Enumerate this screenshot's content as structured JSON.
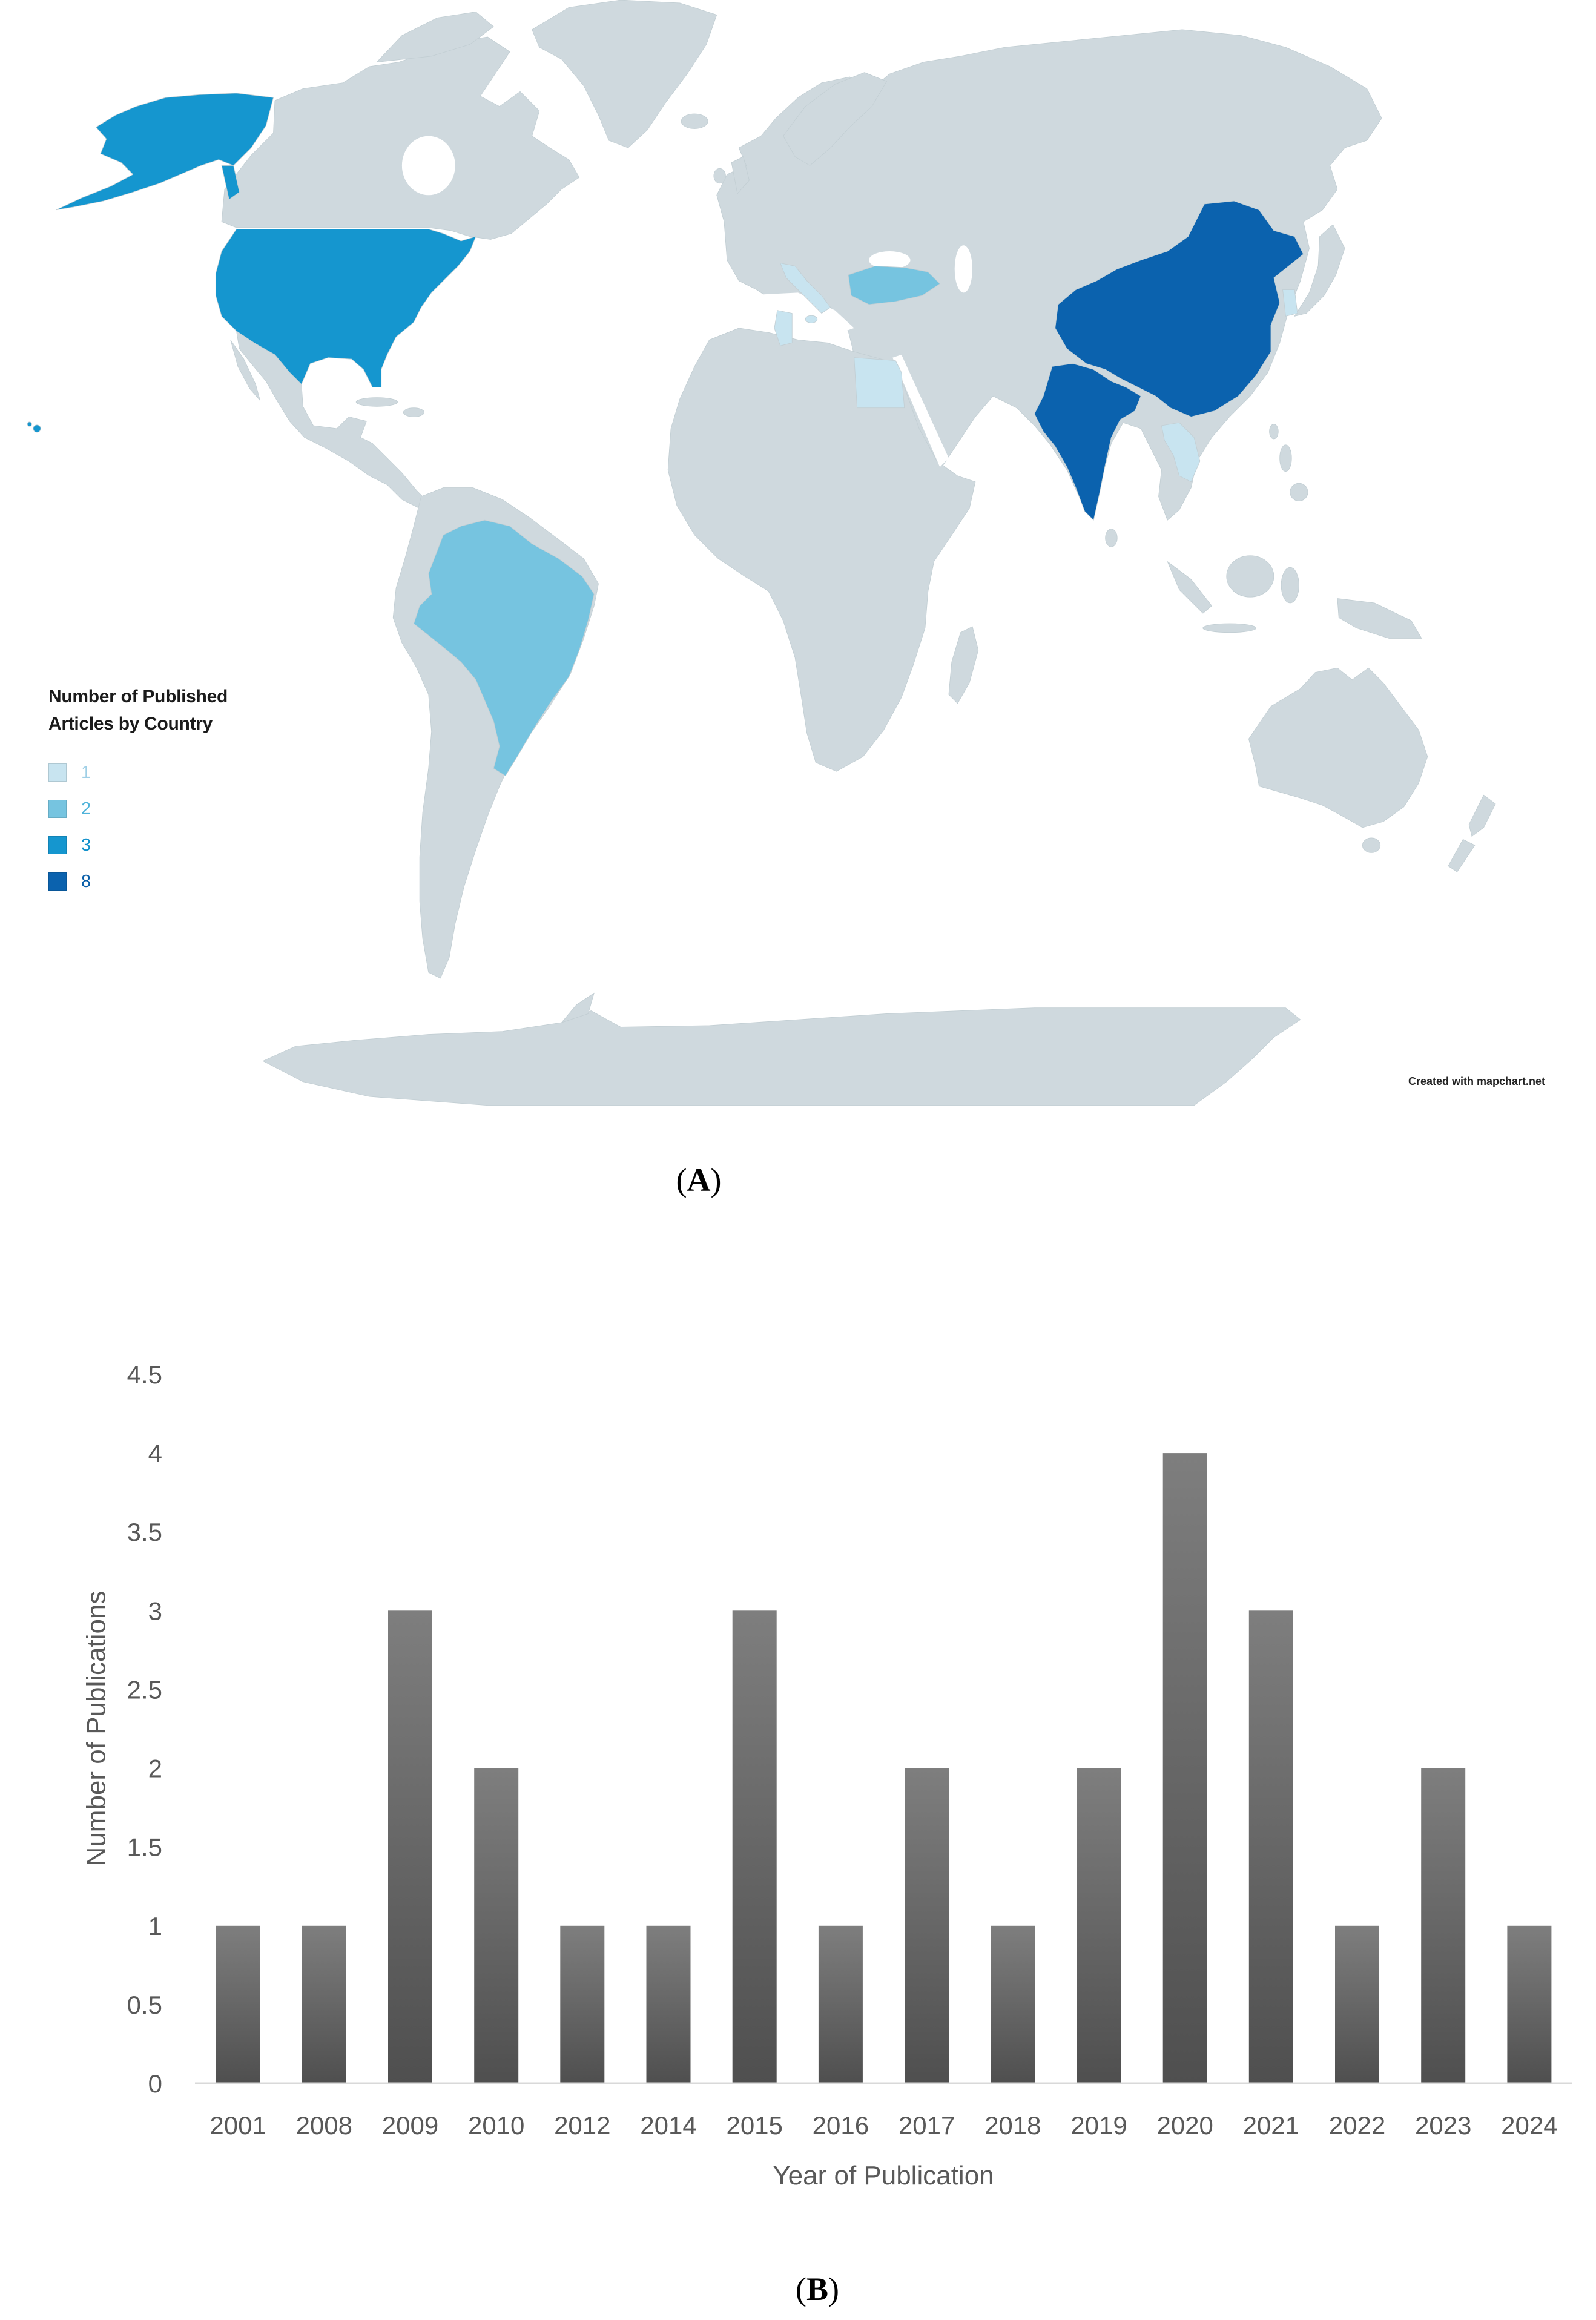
{
  "panel_a": {
    "open": "(",
    "letter": "A",
    "close": ")"
  },
  "panel_b": {
    "open": "(",
    "letter": "B",
    "close": ")"
  },
  "map": {
    "base_color": "#cfd9de",
    "legend": {
      "title_line1": "Number of Published",
      "title_line2": "Articles by Country",
      "entries": [
        {
          "label": "1",
          "color": "#c8e4f0",
          "label_color": "#9fcfe6"
        },
        {
          "label": "2",
          "color": "#76c4e0",
          "label_color": "#4fb3da"
        },
        {
          "label": "3",
          "color": "#1596cf",
          "label_color": "#1391cb"
        },
        {
          "label": "8",
          "color": "#0b62ae",
          "label_color": "#0a5fa9"
        }
      ]
    },
    "credit": "Created with mapchart.net"
  },
  "chart_data": {
    "type": "bar",
    "categories": [
      "2001",
      "2008",
      "2009",
      "2010",
      "2012",
      "2014",
      "2015",
      "2016",
      "2017",
      "2018",
      "2019",
      "2020",
      "2021",
      "2022",
      "2023",
      "2024"
    ],
    "values": [
      1,
      1,
      3,
      2,
      1,
      1,
      3,
      1,
      2,
      1,
      2,
      4,
      3,
      1,
      2,
      1
    ],
    "xlabel": "Year of Publication",
    "ylabel": "Number of Publications",
    "ylim": [
      0,
      4.5
    ],
    "yticks": [
      0,
      0.5,
      1,
      1.5,
      2,
      2.5,
      3,
      3.5,
      4,
      4.5
    ],
    "grid": false,
    "bar_gradient": [
      "#7e7e7e",
      "#4f4f4f"
    ],
    "axis_color": "#d9d9d9"
  }
}
